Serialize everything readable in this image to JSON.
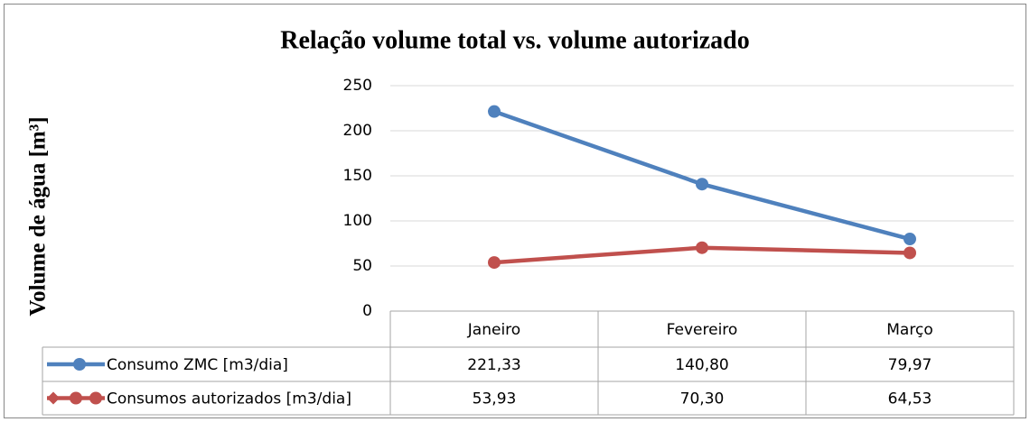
{
  "chart_data": {
    "type": "line",
    "title": "Relação volume total vs. volume autorizado",
    "y_label": "Volume de água [m³]",
    "categories": [
      "Janeiro",
      "Fevereiro",
      "Março"
    ],
    "series": [
      {
        "name": "Consumo ZMC [m3/dia]",
        "color": "#4f81bd",
        "values": [
          221.33,
          140.8,
          79.97
        ],
        "value_labels": [
          "221,33",
          "140,80",
          "79,97"
        ]
      },
      {
        "name": "Consumos autorizados [m3/dia]",
        "color": "#c0504d",
        "values": [
          53.93,
          70.3,
          64.53
        ],
        "value_labels": [
          "53,93",
          "70,30",
          "64,53"
        ]
      }
    ],
    "ylim": [
      0,
      250
    ],
    "yticks": [
      0,
      50,
      100,
      150,
      200,
      250
    ],
    "grid": true
  }
}
